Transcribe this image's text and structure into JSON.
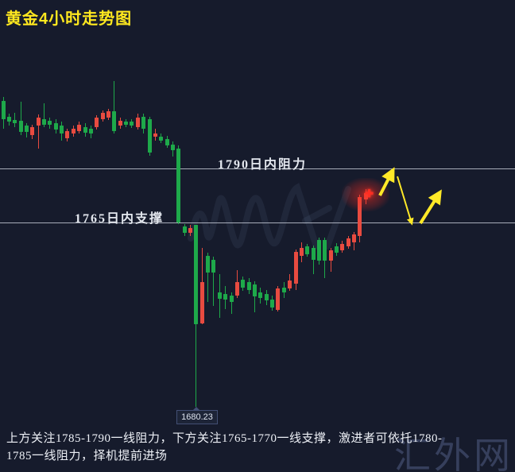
{
  "page": {
    "title": "黄金4小时走势图"
  },
  "colors": {
    "background": "#161b2c",
    "up_red": "#e84b40",
    "down_green": "#1ea94a",
    "accent_yellow": "#ffe928",
    "level_line": "#cdd2dd",
    "label_text": "#e4e8ef"
  },
  "chart_data": {
    "type": "candlestick",
    "title": "黄金4小时走势图",
    "instrument": "黄金",
    "timeframe": "4小时",
    "color_convention": "红涨绿跌 (red = up, green = down)",
    "ylim": [
      1678,
      1832
    ],
    "grid": "off",
    "levels": [
      {
        "price": 1790,
        "label": "1790日内阻力",
        "role": "resistance",
        "label_x": 330
      },
      {
        "price": 1765,
        "label": "1765日内支撑",
        "role": "support",
        "label_x": 150
      }
    ],
    "low_marker": {
      "label": "1680.23",
      "price": 1680.23,
      "candle_index": 33
    },
    "candles_format": [
      "direction u=up(red) d=down(green)",
      "high",
      "body_top",
      "body_bottom",
      "low"
    ],
    "candles": [
      [
        "d",
        1822.9,
        1821.1,
        1812.7,
        1808.3
      ],
      [
        "d",
        1815.2,
        1813.8,
        1811.6,
        1809.8
      ],
      [
        "d",
        1815.6,
        1812.3,
        1810.9,
        1809.0
      ],
      [
        "d",
        1820.7,
        1812.0,
        1806.8,
        1805.3
      ],
      [
        "d",
        1810.9,
        1809.8,
        1806.8,
        1804.3
      ],
      [
        "u",
        1810.1,
        1809.0,
        1805.3,
        1803.5
      ],
      [
        "u",
        1814.9,
        1813.4,
        1809.8,
        1799.1
      ],
      [
        "d",
        1820.0,
        1812.7,
        1810.1,
        1809.0
      ],
      [
        "d",
        1813.4,
        1812.0,
        1810.1,
        1808.3
      ],
      [
        "d",
        1812.7,
        1810.9,
        1807.9,
        1806.1
      ],
      [
        "d",
        1811.6,
        1809.8,
        1806.1,
        1802.8
      ],
      [
        "u",
        1808.3,
        1807.2,
        1803.8,
        1802.4
      ],
      [
        "u",
        1809.8,
        1808.3,
        1806.1,
        1804.6
      ],
      [
        "u",
        1811.6,
        1810.1,
        1807.2,
        1806.1
      ],
      [
        "d",
        1810.9,
        1809.0,
        1806.4,
        1804.6
      ],
      [
        "d",
        1809.8,
        1808.3,
        1806.1,
        1803.8
      ],
      [
        "u",
        1814.5,
        1813.4,
        1809.0,
        1807.9
      ],
      [
        "u",
        1816.7,
        1815.6,
        1812.7,
        1811.6
      ],
      [
        "u",
        1817.4,
        1816.3,
        1813.4,
        1812.3
      ],
      [
        "d",
        1830.2,
        1816.3,
        1807.2,
        1806.1
      ],
      [
        "u",
        1813.4,
        1812.0,
        1809.8,
        1808.3
      ],
      [
        "d",
        1812.7,
        1811.6,
        1810.1,
        1809.0
      ],
      [
        "d",
        1812.7,
        1811.6,
        1809.8,
        1808.7
      ],
      [
        "u",
        1815.2,
        1813.4,
        1809.0,
        1807.9
      ],
      [
        "d",
        1815.2,
        1813.8,
        1808.3,
        1806.1
      ],
      [
        "d",
        1813.8,
        1812.7,
        1797.3,
        1795.9
      ],
      [
        "u",
        1808.3,
        1806.1,
        1804.6,
        1802.8
      ],
      [
        "d",
        1806.1,
        1804.6,
        1802.8,
        1801.7
      ],
      [
        "d",
        1805.0,
        1803.5,
        1800.6,
        1799.5
      ],
      [
        "d",
        1802.4,
        1801.0,
        1798.5,
        1795.5
      ],
      [
        "d",
        1800.6,
        1799.1,
        1765.1,
        1764.4
      ],
      [
        "d",
        1764.4,
        1763.3,
        1760.4,
        1758.9
      ],
      [
        "u",
        1764.0,
        1762.6,
        1760.4,
        1758.9
      ],
      [
        "d",
        1764.0,
        1764.0,
        1718.3,
        1680.2
      ],
      [
        "u",
        1753.4,
        1737.7,
        1718.7,
        1718.3
      ],
      [
        "d",
        1751.2,
        1749.7,
        1742.1,
        1728.5
      ],
      [
        "d",
        1749.4,
        1747.9,
        1742.1,
        1726.7
      ],
      [
        "d",
        1741.3,
        1732.9,
        1730.0,
        1721.2
      ],
      [
        "d",
        1735.8,
        1732.2,
        1729.6,
        1725.3
      ],
      [
        "d",
        1732.9,
        1731.5,
        1728.5,
        1723.0
      ],
      [
        "u",
        1743.2,
        1737.7,
        1731.5,
        1730.4
      ],
      [
        "d",
        1740.2,
        1738.8,
        1735.1,
        1733.7
      ],
      [
        "d",
        1739.5,
        1737.7,
        1734.0,
        1732.2
      ],
      [
        "d",
        1738.0,
        1736.6,
        1731.1,
        1723.8
      ],
      [
        "d",
        1735.1,
        1732.9,
        1730.4,
        1727.8
      ],
      [
        "d",
        1734.0,
        1732.2,
        1729.3,
        1727.1
      ],
      [
        "d",
        1731.5,
        1729.6,
        1726.0,
        1724.5
      ],
      [
        "u",
        1735.8,
        1734.8,
        1724.9,
        1724.1
      ],
      [
        "d",
        1737.7,
        1735.1,
        1732.9,
        1730.4
      ],
      [
        "u",
        1741.3,
        1738.4,
        1734.8,
        1733.7
      ],
      [
        "u",
        1752.7,
        1751.6,
        1736.9,
        1734.0
      ],
      [
        "u",
        1756.0,
        1753.4,
        1749.7,
        1746.8
      ],
      [
        "d",
        1755.2,
        1754.1,
        1750.5,
        1749.4
      ],
      [
        "d",
        1754.5,
        1753.4,
        1747.9,
        1741.3
      ],
      [
        "d",
        1758.2,
        1757.1,
        1747.6,
        1745.7
      ],
      [
        "d",
        1758.2,
        1757.1,
        1747.6,
        1739.5
      ],
      [
        "u",
        1753.4,
        1752.3,
        1747.6,
        1742.4
      ],
      [
        "d",
        1755.6,
        1754.1,
        1751.2,
        1749.7
      ],
      [
        "u",
        1756.7,
        1755.2,
        1752.3,
        1751.2
      ],
      [
        "u",
        1758.9,
        1757.8,
        1754.1,
        1753.0
      ],
      [
        "u",
        1760.8,
        1759.6,
        1756.0,
        1752.3
      ],
      [
        "u",
        1777.9,
        1776.8,
        1758.9,
        1756.0
      ],
      [
        "u",
        1780.5,
        1778.7,
        1775.8,
        1773.5
      ]
    ],
    "forecast_arrows": [
      {
        "x1": 478,
        "y1": 246,
        "x2": 494,
        "y2": 215,
        "w": 4
      },
      {
        "x1": 500,
        "y1": 222,
        "x2": 518,
        "y2": 281,
        "w": 2
      },
      {
        "x1": 529,
        "y1": 281,
        "x2": 553,
        "y2": 243,
        "w": 4
      }
    ],
    "pulse_marker": {
      "x": 466,
      "y": 244,
      "glyph": "✚"
    }
  },
  "commentary": {
    "line1": "上方关注1785-1790一线阻力，下方关注1765-1770一线支撑，激进者可依托1780-",
    "line2": "1785一线阻力，择机提前进场"
  },
  "watermark": "汇外网"
}
